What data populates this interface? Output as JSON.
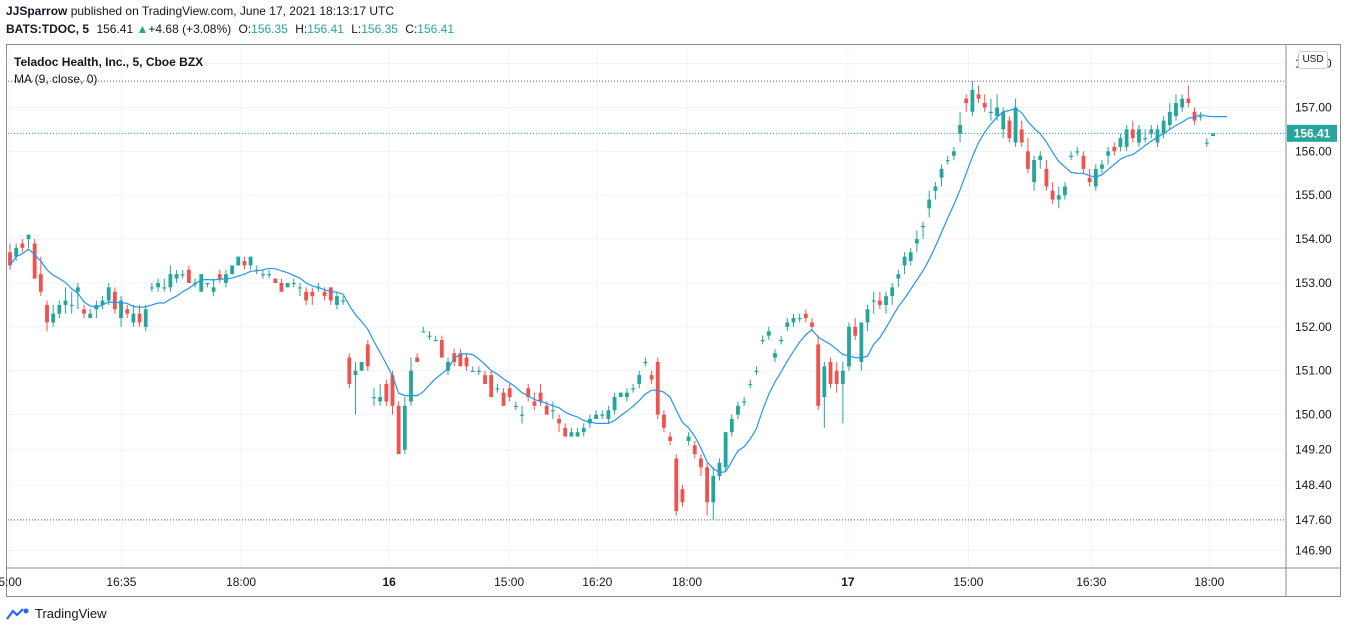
{
  "header": {
    "author": "JJSparrow",
    "published": "published on TradingView.com, June 17, 2021 18:13:17 UTC",
    "symbol": "BATS:TDOC, 5",
    "last": "156.41",
    "change_arrow": "▲",
    "change": "+4.68 (+3.08%)",
    "o_label": "O:",
    "o_value": "156.35",
    "h_label": "H:",
    "h_value": "156.41",
    "l_label": "L:",
    "l_value": "156.35",
    "c_label": "C:",
    "c_value": "156.41"
  },
  "legend": {
    "title": "Teladoc Health, Inc., 5, Cboe BZX",
    "indicator": "MA (9, close, 0)"
  },
  "currency_button": "USD",
  "footer": {
    "brand": "TradingView",
    "logo_icon": "tradingview-logo-icon"
  },
  "colors": {
    "up": "#26a69a",
    "down": "#ef5350",
    "ma": "#2196f3",
    "grid": "#f0f3fa",
    "border": "#8a8e97"
  },
  "chart_data": {
    "type": "candlestick",
    "title": "Teladoc Health, Inc., 5, Cboe BZX",
    "ylim": [
      146.55,
      158.4
    ],
    "y_ticks": [
      "158.00",
      "157.00",
      "156.00",
      "155.00",
      "154.00",
      "153.00",
      "152.00",
      "151.00",
      "150.00",
      "149.20",
      "148.40",
      "147.60",
      "146.90"
    ],
    "x_ticks": [
      "5:00",
      "16:35",
      "18:00",
      "16",
      "15:00",
      "16:20",
      "18:00",
      "17",
      "15:00",
      "16:30",
      "18:00"
    ],
    "last_price_label": "156.41",
    "high_line": 157.6,
    "low_line": 147.6,
    "last_price": 156.41,
    "candles": [
      [
        153.7,
        153.9,
        153.3,
        153.4
      ],
      [
        153.6,
        153.9,
        153.5,
        153.8
      ],
      [
        153.9,
        154.0,
        153.7,
        153.8
      ],
      [
        154.0,
        154.1,
        153.8,
        154.1
      ],
      [
        153.9,
        154.0,
        153.1,
        153.1
      ],
      [
        153.2,
        153.6,
        152.7,
        152.8
      ],
      [
        152.5,
        152.6,
        151.9,
        152.1
      ],
      [
        152.1,
        152.5,
        152.0,
        152.3
      ],
      [
        152.3,
        152.6,
        152.2,
        152.5
      ],
      [
        152.5,
        152.9,
        152.3,
        152.6
      ],
      [
        152.5,
        152.8,
        152.3,
        152.5
      ],
      [
        152.8,
        153.0,
        152.4,
        152.9
      ],
      [
        152.4,
        152.5,
        152.2,
        152.3
      ],
      [
        152.2,
        152.4,
        152.2,
        152.3
      ],
      [
        152.4,
        152.6,
        152.2,
        152.5
      ],
      [
        152.5,
        152.7,
        152.4,
        152.6
      ],
      [
        152.6,
        153.0,
        152.5,
        152.9
      ],
      [
        152.8,
        152.9,
        152.3,
        152.4
      ],
      [
        152.2,
        152.7,
        152.0,
        152.6
      ],
      [
        152.4,
        152.5,
        152.2,
        152.3
      ],
      [
        152.1,
        152.5,
        152.0,
        152.3
      ],
      [
        152.3,
        152.5,
        152.0,
        152.1
      ],
      [
        152.0,
        152.5,
        151.9,
        152.4
      ],
      [
        152.9,
        153.0,
        152.8,
        152.9
      ],
      [
        152.9,
        153.1,
        152.8,
        153.0
      ],
      [
        152.9,
        153.1,
        152.8,
        152.9
      ],
      [
        152.9,
        153.4,
        152.8,
        153.2
      ],
      [
        153.1,
        153.3,
        153.0,
        153.2
      ],
      [
        153.2,
        153.3,
        153.1,
        153.2
      ],
      [
        153.3,
        153.4,
        153.0,
        153.0
      ],
      [
        153.0,
        153.1,
        152.9,
        153.0
      ],
      [
        152.8,
        153.2,
        152.8,
        153.2
      ],
      [
        153.0,
        153.0,
        152.9,
        153.0
      ],
      [
        152.8,
        153.1,
        152.7,
        152.9
      ],
      [
        153.2,
        153.3,
        153.0,
        153.1
      ],
      [
        153.0,
        153.3,
        152.9,
        153.2
      ],
      [
        153.2,
        153.4,
        153.2,
        153.4
      ],
      [
        153.4,
        153.6,
        153.4,
        153.6
      ],
      [
        153.5,
        153.6,
        153.3,
        153.4
      ],
      [
        153.4,
        153.6,
        153.3,
        153.6
      ],
      [
        153.3,
        153.4,
        153.2,
        153.3
      ],
      [
        153.2,
        153.3,
        153.1,
        153.2
      ],
      [
        153.2,
        153.3,
        153.1,
        153.2
      ],
      [
        153.1,
        153.1,
        153.0,
        153.0
      ],
      [
        153.0,
        153.1,
        152.8,
        152.8
      ],
      [
        152.9,
        153.0,
        152.9,
        153.0
      ],
      [
        153.0,
        153.1,
        152.9,
        153.0
      ],
      [
        152.9,
        153.0,
        152.7,
        152.9
      ],
      [
        152.8,
        152.9,
        152.5,
        152.6
      ],
      [
        152.8,
        152.9,
        152.5,
        152.7
      ],
      [
        152.9,
        153.0,
        152.8,
        152.9
      ],
      [
        152.8,
        152.9,
        152.6,
        152.7
      ],
      [
        152.9,
        152.9,
        152.5,
        152.6
      ],
      [
        152.5,
        152.8,
        152.4,
        152.7
      ],
      [
        152.6,
        152.7,
        152.5,
        152.6
      ],
      [
        151.3,
        151.4,
        150.6,
        150.7
      ],
      [
        150.9,
        151.2,
        150.0,
        151.0
      ],
      [
        151.0,
        151.2,
        151.0,
        151.2
      ],
      [
        151.6,
        151.7,
        151.0,
        151.1
      ],
      [
        150.4,
        150.6,
        150.2,
        150.4
      ],
      [
        150.3,
        150.7,
        150.2,
        150.4
      ],
      [
        150.7,
        150.8,
        150.2,
        150.3
      ],
      [
        150.9,
        151.0,
        150.0,
        150.2
      ],
      [
        150.2,
        150.3,
        149.1,
        149.1
      ],
      [
        149.2,
        150.4,
        149.1,
        150.2
      ],
      [
        150.3,
        151.3,
        150.2,
        151.0
      ],
      [
        151.3,
        151.4,
        151.2,
        151.2
      ],
      [
        151.9,
        152.0,
        151.9,
        151.9
      ],
      [
        151.8,
        151.9,
        151.7,
        151.8
      ],
      [
        151.7,
        151.8,
        151.7,
        151.7
      ],
      [
        151.7,
        151.8,
        151.3,
        151.3
      ],
      [
        151.0,
        151.3,
        150.9,
        151.2
      ],
      [
        151.4,
        151.5,
        151.1,
        151.2
      ],
      [
        151.4,
        151.5,
        151.1,
        151.1
      ],
      [
        151.3,
        151.4,
        151.0,
        151.1
      ],
      [
        151.0,
        151.1,
        151.0,
        151.0
      ],
      [
        151.0,
        151.1,
        150.9,
        151.0
      ],
      [
        150.9,
        151.0,
        150.7,
        150.7
      ],
      [
        150.9,
        151.0,
        150.4,
        150.4
      ],
      [
        150.6,
        150.7,
        150.5,
        150.6
      ],
      [
        150.5,
        150.6,
        150.2,
        150.2
      ],
      [
        150.6,
        150.7,
        150.3,
        150.4
      ],
      [
        150.2,
        150.3,
        150.1,
        150.2
      ],
      [
        150.0,
        150.2,
        149.8,
        150.0
      ],
      [
        150.6,
        150.7,
        150.3,
        150.4
      ],
      [
        150.3,
        150.5,
        150.1,
        150.2
      ],
      [
        150.5,
        150.7,
        150.2,
        150.3
      ],
      [
        150.2,
        150.3,
        150.0,
        150.0
      ],
      [
        150.1,
        150.3,
        149.9,
        150.1
      ],
      [
        149.9,
        150.0,
        149.6,
        149.8
      ],
      [
        149.7,
        149.8,
        149.5,
        149.5
      ],
      [
        149.5,
        149.7,
        149.5,
        149.6
      ],
      [
        149.5,
        149.7,
        149.5,
        149.6
      ],
      [
        149.6,
        149.8,
        149.5,
        149.7
      ],
      [
        149.8,
        150.0,
        149.7,
        149.9
      ],
      [
        149.9,
        150.1,
        149.9,
        150.0
      ],
      [
        150.0,
        150.1,
        149.9,
        150.0
      ],
      [
        149.9,
        150.2,
        149.8,
        150.1
      ],
      [
        150.1,
        150.5,
        150.0,
        150.4
      ],
      [
        150.4,
        150.5,
        150.4,
        150.5
      ],
      [
        150.4,
        150.6,
        150.3,
        150.5
      ],
      [
        150.6,
        150.7,
        150.5,
        150.6
      ],
      [
        150.7,
        151.0,
        150.6,
        150.9
      ],
      [
        151.2,
        151.3,
        151.1,
        151.2
      ],
      [
        150.9,
        151.0,
        150.7,
        150.8
      ],
      [
        151.2,
        151.3,
        149.9,
        150.0
      ],
      [
        150.0,
        150.1,
        149.6,
        149.7
      ],
      [
        149.5,
        149.6,
        149.3,
        149.4
      ],
      [
        149.0,
        149.1,
        147.7,
        147.8
      ],
      [
        148.3,
        148.4,
        147.9,
        148.0
      ],
      [
        149.4,
        149.6,
        149.3,
        149.5
      ],
      [
        149.3,
        149.4,
        149.0,
        149.1
      ],
      [
        149.0,
        149.1,
        148.6,
        148.8
      ],
      [
        148.8,
        148.9,
        147.7,
        148.0
      ],
      [
        148.0,
        148.8,
        147.6,
        148.6
      ],
      [
        148.6,
        149.0,
        148.5,
        148.9
      ],
      [
        148.8,
        149.6,
        148.7,
        149.6
      ],
      [
        149.6,
        150.0,
        149.5,
        149.9
      ],
      [
        150.0,
        150.3,
        149.9,
        150.2
      ],
      [
        150.3,
        150.4,
        150.2,
        150.3
      ],
      [
        150.7,
        150.8,
        150.6,
        150.7
      ],
      [
        151.0,
        151.1,
        150.9,
        151.0
      ],
      [
        151.7,
        151.8,
        151.6,
        151.7
      ],
      [
        151.8,
        152.0,
        151.7,
        151.9
      ],
      [
        151.3,
        151.5,
        151.2,
        151.4
      ],
      [
        151.7,
        151.8,
        151.6,
        151.7
      ],
      [
        152.0,
        152.2,
        151.9,
        152.1
      ],
      [
        152.1,
        152.3,
        152.0,
        152.2
      ],
      [
        152.2,
        152.3,
        152.1,
        152.2
      ],
      [
        152.3,
        152.4,
        152.1,
        152.2
      ],
      [
        152.1,
        152.2,
        151.9,
        152.0
      ],
      [
        151.6,
        151.8,
        150.1,
        150.2
      ],
      [
        150.4,
        151.2,
        149.7,
        151.1
      ],
      [
        151.2,
        151.3,
        150.6,
        150.7
      ],
      [
        151.0,
        151.2,
        150.5,
        150.7
      ],
      [
        150.7,
        151.2,
        149.8,
        151.0
      ],
      [
        151.1,
        152.1,
        151.0,
        152.0
      ],
      [
        152.0,
        152.2,
        151.7,
        151.8
      ],
      [
        151.2,
        152.1,
        151.0,
        152.1
      ],
      [
        152.1,
        152.5,
        151.9,
        152.4
      ],
      [
        152.6,
        152.8,
        152.3,
        152.6
      ],
      [
        152.6,
        152.8,
        152.4,
        152.5
      ],
      [
        152.5,
        152.8,
        152.3,
        152.7
      ],
      [
        152.7,
        153.0,
        152.5,
        152.9
      ],
      [
        153.1,
        153.3,
        152.9,
        153.2
      ],
      [
        153.4,
        153.7,
        153.2,
        153.6
      ],
      [
        153.5,
        153.8,
        153.4,
        153.7
      ],
      [
        153.9,
        154.2,
        153.7,
        154.0
      ],
      [
        154.3,
        154.4,
        154.0,
        154.3
      ],
      [
        154.7,
        155.1,
        154.5,
        154.9
      ],
      [
        155.1,
        155.3,
        154.9,
        155.2
      ],
      [
        155.4,
        155.7,
        155.2,
        155.6
      ],
      [
        155.8,
        155.9,
        155.7,
        155.8
      ],
      [
        155.9,
        156.1,
        155.8,
        156.0
      ],
      [
        156.4,
        156.9,
        156.2,
        156.6
      ],
      [
        157.2,
        157.3,
        156.9,
        157.1
      ],
      [
        156.9,
        157.6,
        156.8,
        157.4
      ],
      [
        157.3,
        157.5,
        157.1,
        157.2
      ],
      [
        157.1,
        157.3,
        156.9,
        157.0
      ],
      [
        156.9,
        157.2,
        156.7,
        156.9
      ],
      [
        156.8,
        157.3,
        156.7,
        157.0
      ],
      [
        156.5,
        157.0,
        156.3,
        156.9
      ],
      [
        156.7,
        156.8,
        156.2,
        156.3
      ],
      [
        156.2,
        157.2,
        156.1,
        157.0
      ],
      [
        156.5,
        156.7,
        156.1,
        156.2
      ],
      [
        156.0,
        156.3,
        155.5,
        155.6
      ],
      [
        155.3,
        155.9,
        155.1,
        155.8
      ],
      [
        155.8,
        156.0,
        155.6,
        155.9
      ],
      [
        155.6,
        155.8,
        155.1,
        155.2
      ],
      [
        155.1,
        155.3,
        154.8,
        154.9
      ],
      [
        154.9,
        155.2,
        154.7,
        155.0
      ],
      [
        155.0,
        155.3,
        154.9,
        155.2
      ],
      [
        155.9,
        156.0,
        155.8,
        155.9
      ],
      [
        156.0,
        156.1,
        155.9,
        156.0
      ],
      [
        155.9,
        156.0,
        155.5,
        155.6
      ],
      [
        155.4,
        155.6,
        155.2,
        155.3
      ],
      [
        155.2,
        155.7,
        155.1,
        155.6
      ],
      [
        155.6,
        155.8,
        155.5,
        155.7
      ],
      [
        155.9,
        156.1,
        155.7,
        156.0
      ],
      [
        156.1,
        156.2,
        155.9,
        156.0
      ],
      [
        156.1,
        156.4,
        156.0,
        156.3
      ],
      [
        156.1,
        156.6,
        156.0,
        156.5
      ],
      [
        156.5,
        156.7,
        156.2,
        156.3
      ],
      [
        156.2,
        156.6,
        156.1,
        156.5
      ],
      [
        156.3,
        156.5,
        156.2,
        156.3
      ],
      [
        156.4,
        156.6,
        156.3,
        156.5
      ],
      [
        156.2,
        156.6,
        156.1,
        156.5
      ],
      [
        156.4,
        156.8,
        156.3,
        156.7
      ],
      [
        156.6,
        157.1,
        156.5,
        156.9
      ],
      [
        156.8,
        157.3,
        156.7,
        157.1
      ],
      [
        157.0,
        157.3,
        156.9,
        157.2
      ],
      [
        157.2,
        157.5,
        157.0,
        157.1
      ],
      [
        156.9,
        157.0,
        156.6,
        156.7
      ],
      [
        156.8,
        156.9,
        156.7,
        156.8
      ],
      [
        156.2,
        156.3,
        156.1,
        156.2
      ],
      [
        156.35,
        156.41,
        156.35,
        156.41
      ]
    ]
  }
}
